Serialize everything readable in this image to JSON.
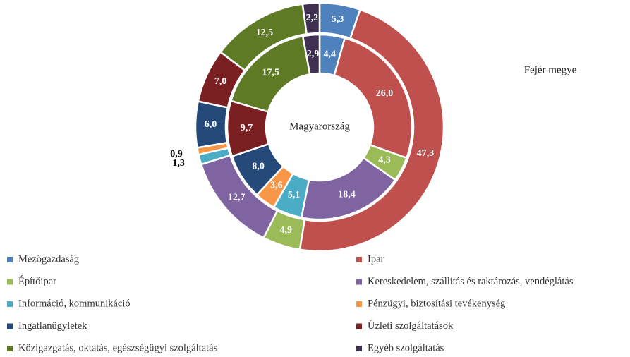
{
  "chart_data": {
    "type": "donut",
    "categories": [
      "Mezőgazdaság",
      "Ipar",
      "Építőipar",
      "Kereskedelem, szállítás és raktározás, vendéglátás",
      "Információ, kommunikáció",
      "Pénzügyi, biztosítási tevékenység",
      "Ingatlanügyletek",
      "Üzleti szolgáltatások",
      "Közigazgatás, oktatás, egészségügyi szolgáltatás",
      "Egyéb szolgáltatás"
    ],
    "colors": [
      "#4f81bd",
      "#c0504d",
      "#9bbb59",
      "#8064a2",
      "#4bacc6",
      "#f79646",
      "#254a7a",
      "#7b2022",
      "#5e7a25",
      "#403152"
    ],
    "series": [
      {
        "name": "Magyarország",
        "values": [
          4.4,
          26.0,
          4.3,
          18.4,
          5.1,
          3.6,
          8.0,
          9.7,
          17.5,
          2.9
        ],
        "value_labels": [
          "4,4",
          "26,0",
          "4,3",
          "18,4",
          "5,1",
          "3,6",
          "8,0",
          "9,7",
          "17,5",
          "2,9"
        ]
      },
      {
        "name": "Fejér megye",
        "values": [
          5.3,
          47.3,
          4.9,
          12.7,
          1.3,
          0.9,
          6.0,
          7.0,
          12.5,
          2.2
        ],
        "value_labels": [
          "5,3",
          "47,3",
          "4,9",
          "12,7",
          "1,3",
          "0,9",
          "6,0",
          "7,0",
          "12,5",
          "2,2"
        ]
      }
    ]
  }
}
